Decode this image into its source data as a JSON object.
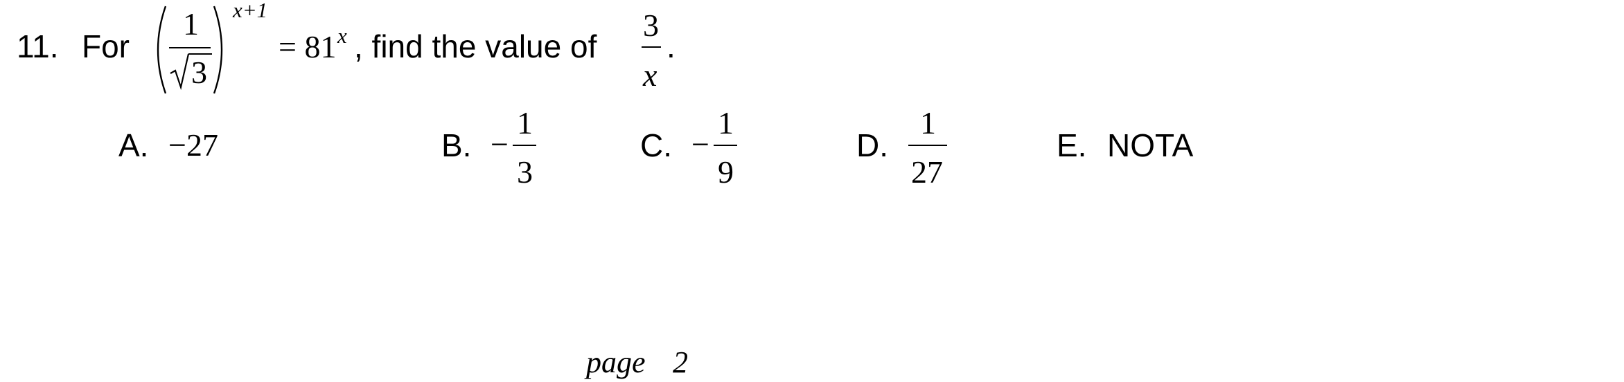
{
  "question": {
    "number": "11.",
    "lead": "For",
    "expr_num": "1",
    "expr_radicand": "3",
    "expr_exponent": "x+1",
    "expr_rhs": "= 81",
    "expr_rhs_exponent": "x",
    "mid_text": ", find the value of",
    "target_num": "3",
    "target_den": "x",
    "period": "."
  },
  "choices": [
    {
      "label": "A.",
      "value": "−27"
    },
    {
      "label": "B.",
      "sign": "−",
      "num": "1",
      "den": "3"
    },
    {
      "label": "C.",
      "sign": "−",
      "num": "1",
      "den": "9"
    },
    {
      "label": "D.",
      "num": "1",
      "den": "27"
    },
    {
      "label": "E.",
      "value": "NOTA"
    }
  ],
  "footer": {
    "page_label": "page",
    "page_number": "2"
  }
}
